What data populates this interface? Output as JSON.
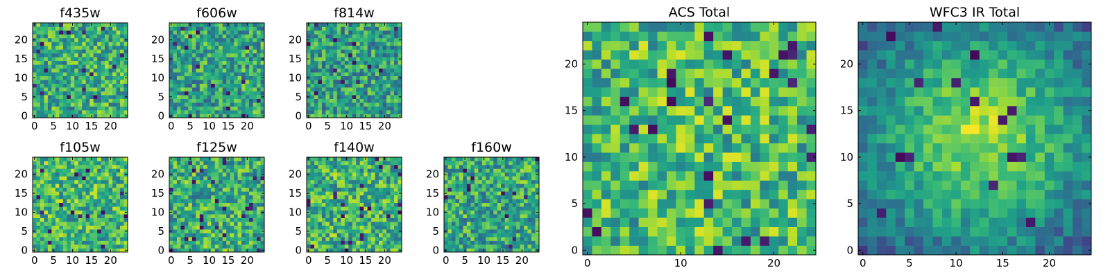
{
  "chart_data": [
    {
      "type": "heatmap",
      "title": "f435w",
      "xticks": [
        "0",
        "5",
        "10",
        "15",
        "20"
      ],
      "yticks": [
        "0",
        "5",
        "10",
        "15",
        "20"
      ],
      "size": [
        25,
        25
      ],
      "colormap": "viridis",
      "seed": 11,
      "bias": 0.62
    },
    {
      "type": "heatmap",
      "title": "f606w",
      "xticks": [
        "0",
        "5",
        "10",
        "15",
        "20"
      ],
      "yticks": [
        "0",
        "5",
        "10",
        "15",
        "20"
      ],
      "size": [
        25,
        25
      ],
      "colormap": "viridis",
      "seed": 23,
      "bias": 0.58
    },
    {
      "type": "heatmap",
      "title": "f814w",
      "xticks": [
        "0",
        "5",
        "10",
        "15",
        "20"
      ],
      "yticks": [
        "0",
        "5",
        "10",
        "15",
        "20"
      ],
      "size": [
        25,
        25
      ],
      "colormap": "viridis",
      "seed": 37,
      "bias": 0.56
    },
    {
      "type": "heatmap",
      "title": "f105w",
      "xticks": [
        "0",
        "5",
        "10",
        "15",
        "20"
      ],
      "yticks": [
        "0",
        "5",
        "10",
        "15",
        "20"
      ],
      "size": [
        25,
        25
      ],
      "colormap": "viridis",
      "seed": 41,
      "bias": 0.66
    },
    {
      "type": "heatmap",
      "title": "f125w",
      "xticks": [
        "0",
        "5",
        "10",
        "15",
        "20"
      ],
      "yticks": [
        "0",
        "5",
        "10",
        "15",
        "20"
      ],
      "size": [
        25,
        25
      ],
      "colormap": "viridis",
      "seed": 53,
      "bias": 0.62
    },
    {
      "type": "heatmap",
      "title": "f140w",
      "xticks": [
        "0",
        "5",
        "10",
        "15",
        "20"
      ],
      "yticks": [
        "0",
        "5",
        "10",
        "15",
        "20"
      ],
      "size": [
        25,
        25
      ],
      "colormap": "viridis",
      "seed": 67,
      "bias": 0.64
    },
    {
      "type": "heatmap",
      "title": "f160w",
      "xticks": [
        "0",
        "5",
        "10",
        "15",
        "20"
      ],
      "yticks": [
        "0",
        "5",
        "10",
        "15",
        "20"
      ],
      "size": [
        25,
        25
      ],
      "colormap": "viridis",
      "seed": 79,
      "bias": 0.6
    },
    {
      "type": "heatmap",
      "title": "ACS Total",
      "xticks": [
        "0",
        "10",
        "20"
      ],
      "yticks": [
        "0",
        "5",
        "10",
        "15",
        "20"
      ],
      "size": [
        25,
        25
      ],
      "colormap": "viridis",
      "seed": 97,
      "bias": 0.68
    },
    {
      "type": "heatmap",
      "title": "WFC3 IR Total",
      "xticks": [
        "0",
        "5",
        "10",
        "15",
        "20"
      ],
      "yticks": [
        "0",
        "5",
        "10",
        "15",
        "20"
      ],
      "size": [
        25,
        25
      ],
      "colormap": "viridis",
      "seed": 113,
      "bias": 0.66,
      "center_bright": true
    }
  ]
}
